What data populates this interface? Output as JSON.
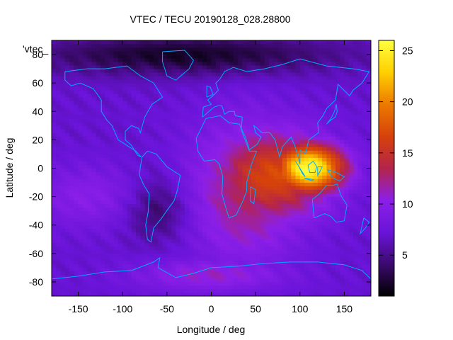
{
  "chart_data": {
    "type": "heatmap",
    "title": "VTEC / TECU 20190128_028.28800",
    "xlabel": "Longitude / deg",
    "ylabel": "Latitude / deg",
    "xlim": [
      -180,
      180
    ],
    "ylim": [
      -90,
      90
    ],
    "xticks": [
      -150,
      -100,
      -50,
      0,
      50,
      100,
      150
    ],
    "yticks": [
      -80,
      -60,
      -40,
      -20,
      0,
      20,
      40,
      60,
      80
    ],
    "grid": false,
    "legend_entry": "'vtec_",
    "legend_placement": "top-left",
    "colorbar": {
      "label_ticks": [
        5,
        10,
        15,
        20,
        25
      ],
      "range": [
        1,
        26
      ],
      "colormap": [
        "#000000",
        "#3c0a6e",
        "#6a14d9",
        "#8c1fe8",
        "#b4244a",
        "#d6420a",
        "#ec7a00",
        "#ffd000",
        "#ffff40"
      ]
    },
    "background_level": 7,
    "hotspots": [
      {
        "lon": 110,
        "lat": 0,
        "peak": 26,
        "sigma_lon": 28,
        "sigma_lat": 12
      },
      {
        "lon": 70,
        "lat": -5,
        "peak": 17,
        "sigma_lon": 45,
        "sigma_lat": 22
      },
      {
        "lon": 40,
        "lat": -15,
        "peak": 13,
        "sigma_lon": 45,
        "sigma_lat": 35
      },
      {
        "lon": -140,
        "lat": -20,
        "peak": 10,
        "sigma_lon": 40,
        "sigma_lat": 15
      },
      {
        "lon": 0,
        "lat": -75,
        "peak": 11,
        "sigma_lon": 60,
        "sigma_lat": 8
      }
    ],
    "lows": [
      {
        "lon": -60,
        "lat": -30,
        "depth": 3,
        "sigma_lon": 25,
        "sigma_lat": 15
      },
      {
        "lon": -30,
        "lat": 80,
        "depth": 5,
        "sigma_lon": 120,
        "sigma_lat": 10
      }
    ],
    "coastline_color": "#00aaff"
  }
}
